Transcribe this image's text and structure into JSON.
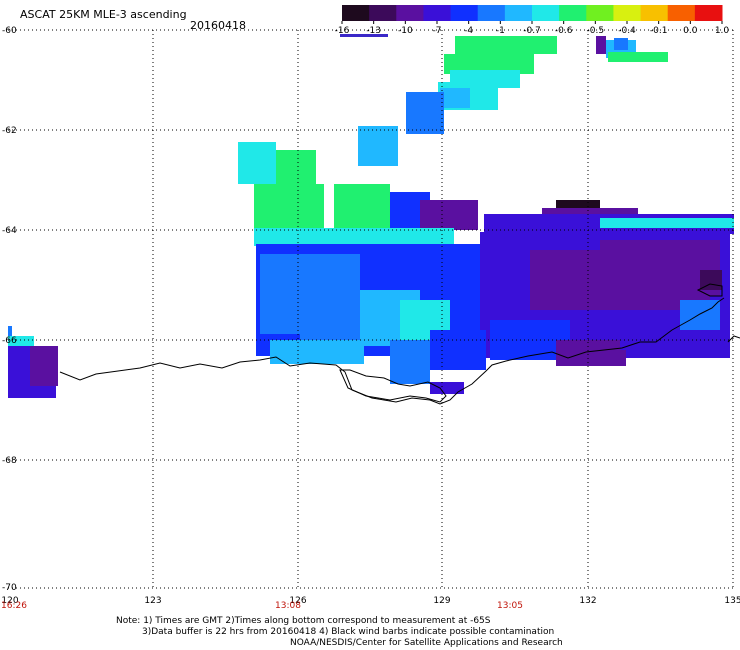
{
  "header": {
    "title": "ASCAT 25KM MLE-3 ascending",
    "date": "20160418"
  },
  "colorbar": {
    "labels": [
      "-16",
      "-13",
      "-10",
      "-7",
      "-4",
      "-1",
      "-0.7",
      "-0.6",
      "-0.5",
      "-0.4",
      "-0.1",
      "0.0",
      "1.0"
    ],
    "colors": [
      "#1e0a1e",
      "#3c0a5a",
      "#5a10a0",
      "#3a10d8",
      "#1030ff",
      "#1878ff",
      "#20b8ff",
      "#20e8e8",
      "#20f070",
      "#70f020",
      "#d8f010",
      "#f8c000",
      "#f86000",
      "#e81010"
    ]
  },
  "axes": {
    "lon_labels": [
      "120",
      "123",
      "126",
      "129",
      "132",
      "135"
    ],
    "lat_labels": [
      "-60",
      "-62",
      "-64",
      "-66",
      "-68",
      "-70"
    ]
  },
  "times": [
    "16:26",
    "13:08",
    "13:05"
  ],
  "notes": {
    "line1": "Note: 1) Times are GMT 2)Times along bottom correspond to measurement at -65S",
    "line2": "3)Data buffer is 22 hrs from 20160418 4) Black wind barbs indicate possible contamination",
    "line3": "NOAA/NESDIS/Center for Satellite Applications and Research"
  }
}
